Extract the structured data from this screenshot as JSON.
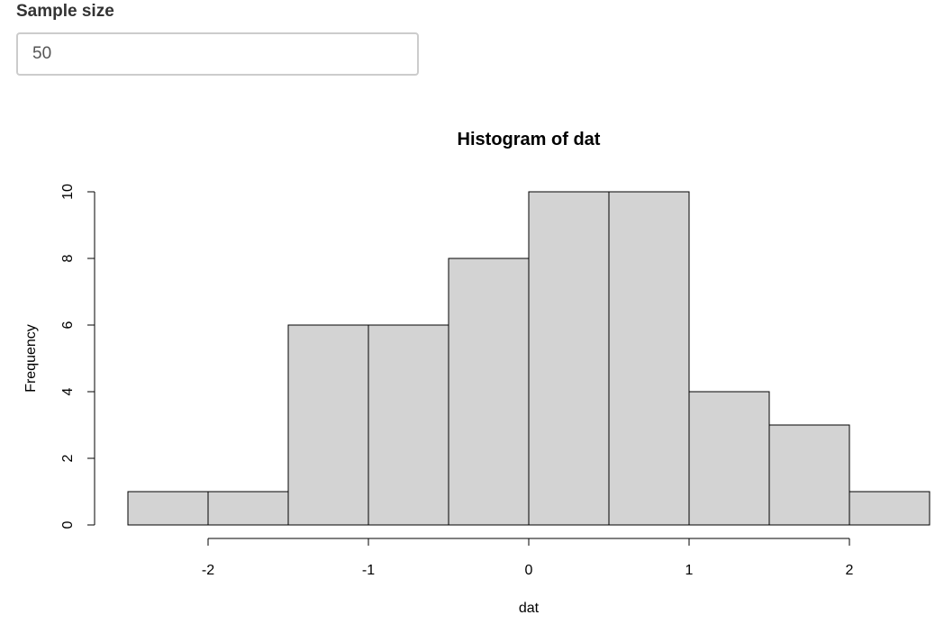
{
  "input": {
    "label": "Sample size",
    "value": "50"
  },
  "chart_data": {
    "type": "bar",
    "title": "Histogram of dat",
    "xlabel": "dat",
    "ylabel": "Frequency",
    "bin_edges": [
      -2.5,
      -2.0,
      -1.5,
      -1.0,
      -0.5,
      0.0,
      0.5,
      1.0,
      1.5,
      2.0,
      2.5
    ],
    "values": [
      1,
      1,
      6,
      6,
      8,
      10,
      10,
      4,
      3,
      1
    ],
    "xlim": [
      -2.5,
      2.5
    ],
    "ylim": [
      0,
      10
    ],
    "xticks": [
      -2,
      -1,
      0,
      1,
      2
    ],
    "xtick_labels": [
      "-2",
      "-1",
      "0",
      "1",
      "2"
    ],
    "yticks": [
      0,
      2,
      4,
      6,
      8,
      10
    ],
    "ytick_labels": [
      "0",
      "2",
      "4",
      "6",
      "8",
      "10"
    ],
    "grid": false,
    "legend": "none",
    "bar_fill": "#d3d3d3",
    "bar_stroke": "#000000"
  }
}
